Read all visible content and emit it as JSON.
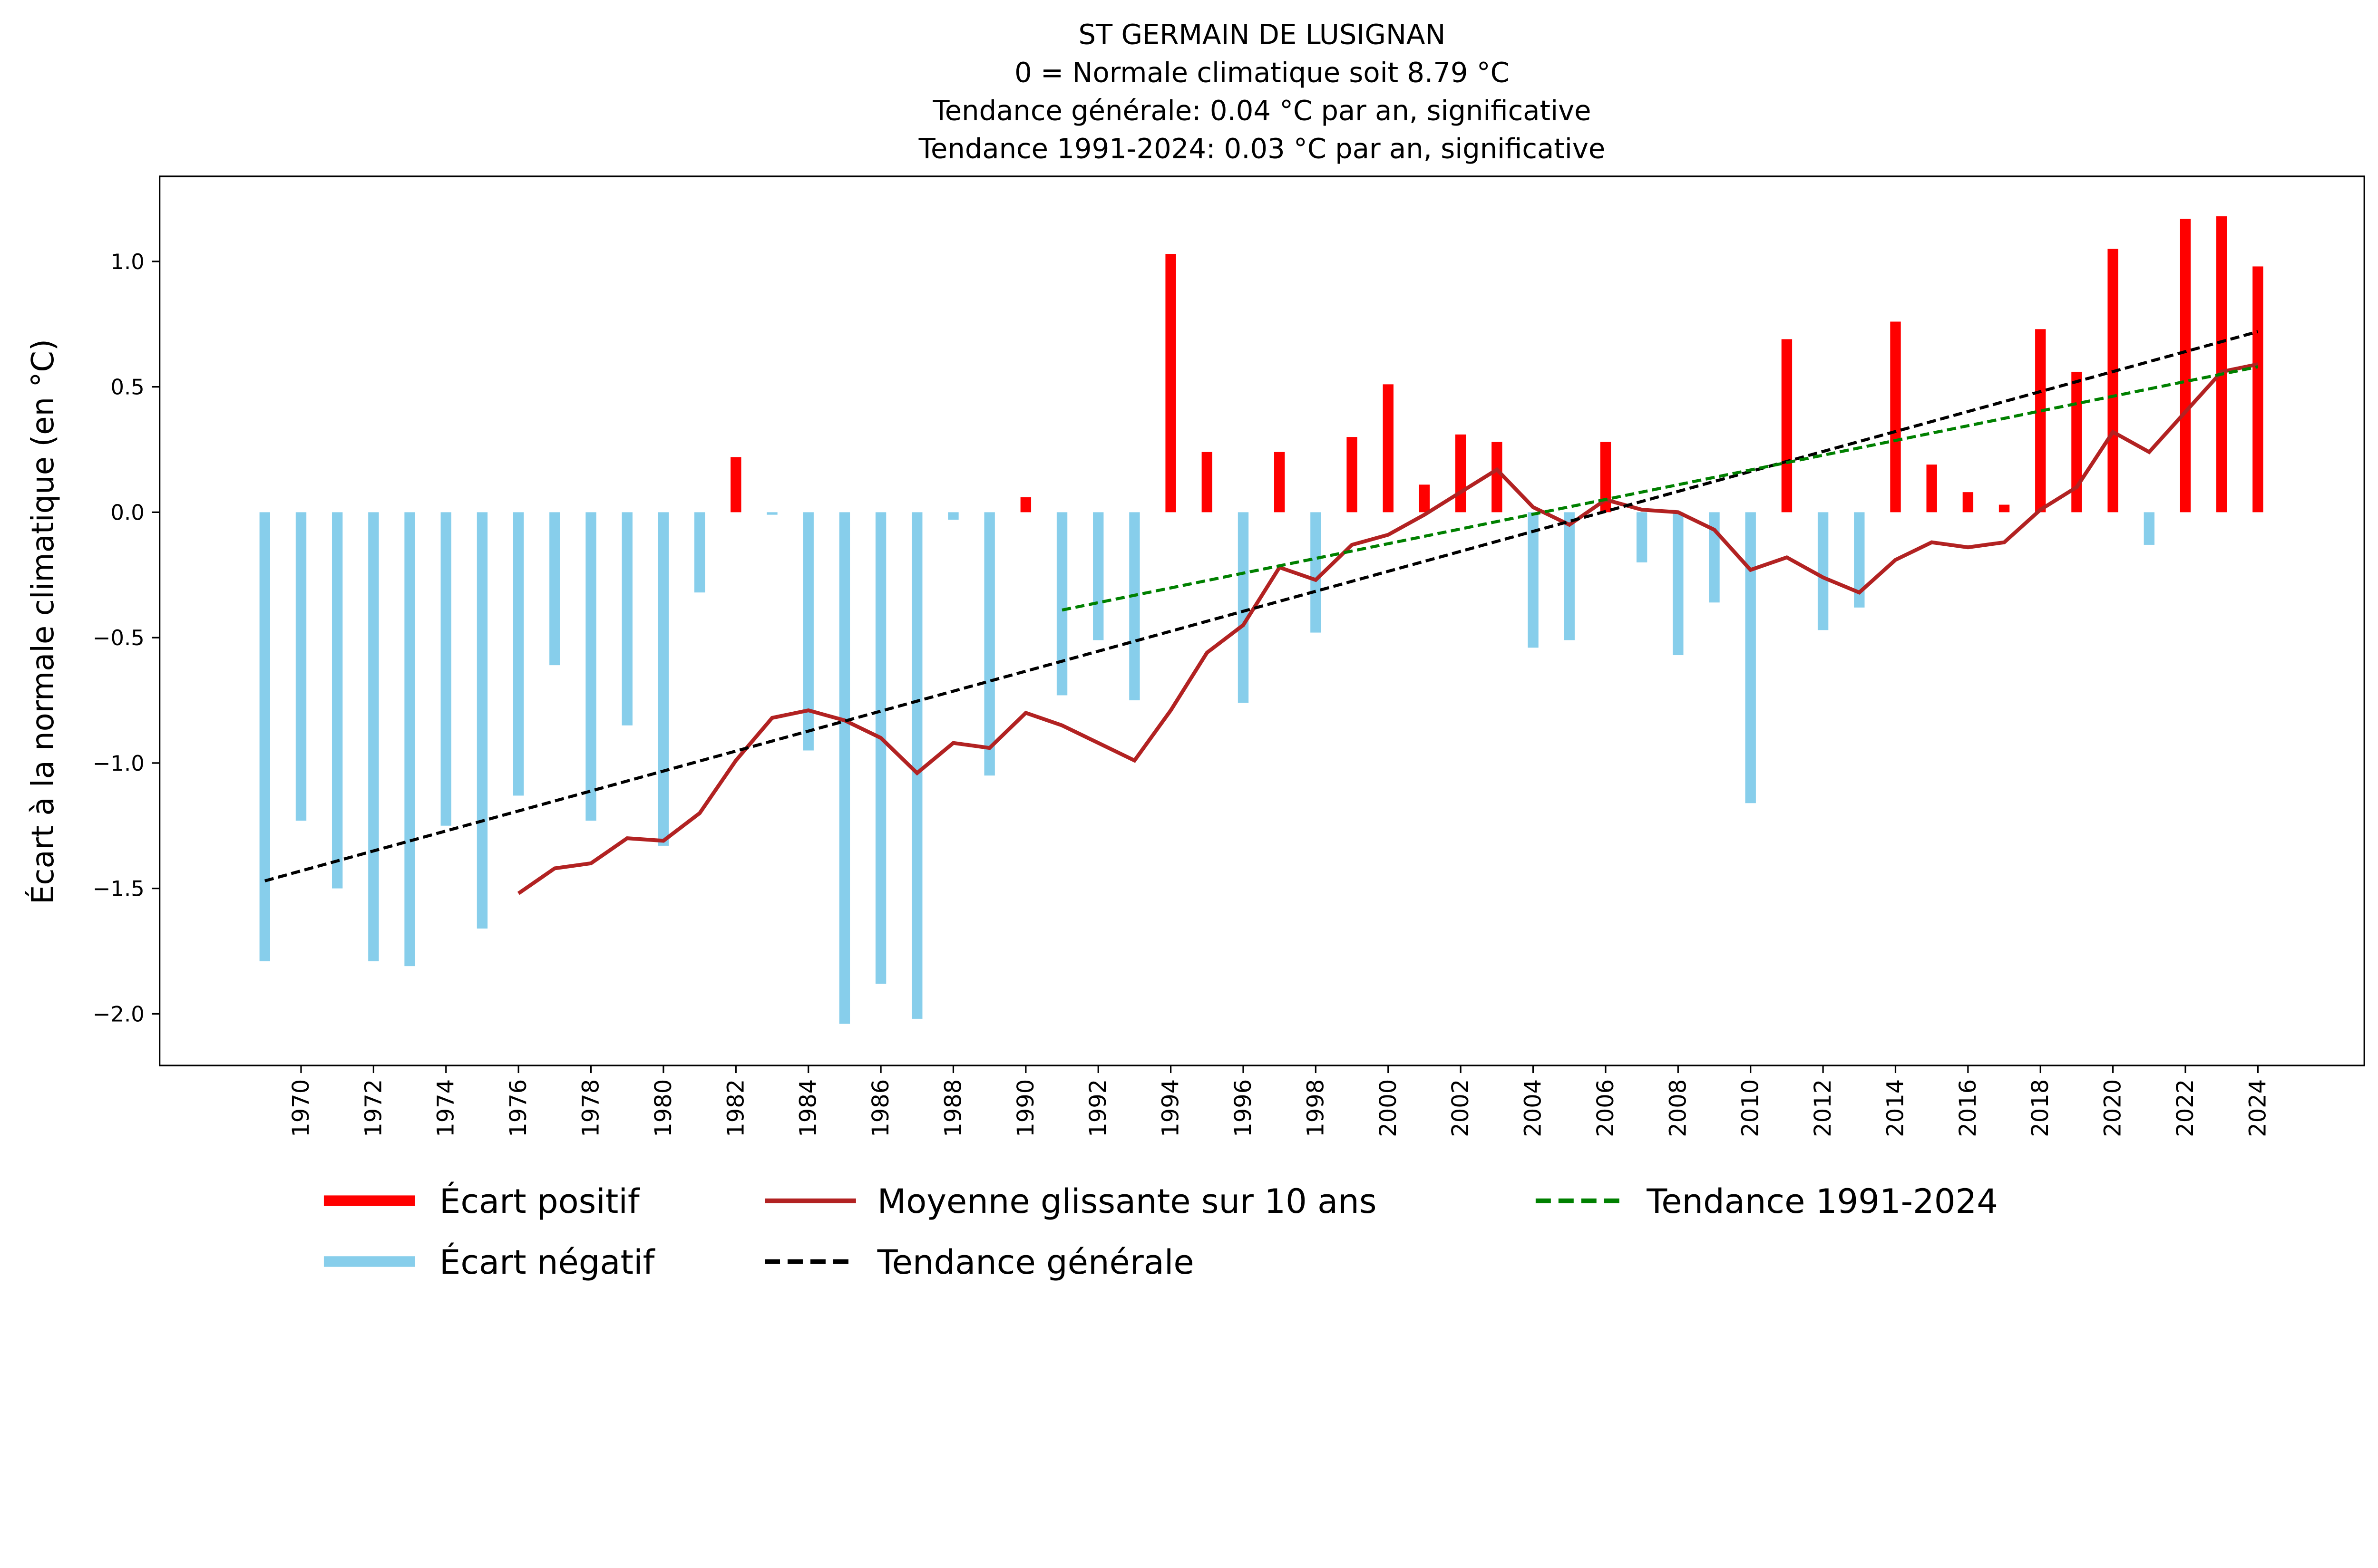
{
  "chart_data": {
    "type": "bar",
    "title_lines": [
      "ST GERMAIN DE LUSIGNAN",
      "0 = Normale climatique soit 8.79 °C",
      "Tendance générale: 0.04 °C par an, significative",
      "Tendance 1991-2024: 0.03 °C par an, significative"
    ],
    "xlabel": "",
    "ylabel": "Écart à la normale climatique (en °C)",
    "ylim": [
      -2.2,
      1.35
    ],
    "xlim": [
      1968,
      2025
    ],
    "yticks": [
      "−2.0",
      "−1.5",
      "−1.0",
      "−0.5",
      "0.0",
      "0.5",
      "1.0"
    ],
    "ytick_values": [
      -2.0,
      -1.5,
      -1.0,
      -0.5,
      0.0,
      0.5,
      1.0
    ],
    "xticks": [
      "1970",
      "1972",
      "1974",
      "1976",
      "1978",
      "1980",
      "1982",
      "1984",
      "1986",
      "1988",
      "1990",
      "1992",
      "1994",
      "1996",
      "1998",
      "2000",
      "2002",
      "2004",
      "2006",
      "2008",
      "2010",
      "2012",
      "2014",
      "2016",
      "2018",
      "2020",
      "2022",
      "2024"
    ],
    "grid": false,
    "colors": {
      "positive": "#ff0000",
      "negative": "#87ceeb",
      "moving_avg": "#b22222",
      "trend_general": "#000000",
      "trend_recent": "#008000"
    },
    "years": [
      1969,
      1970,
      1971,
      1972,
      1973,
      1974,
      1975,
      1976,
      1977,
      1978,
      1979,
      1980,
      1981,
      1982,
      1983,
      1984,
      1985,
      1986,
      1987,
      1988,
      1989,
      1990,
      1991,
      1992,
      1993,
      1994,
      1995,
      1996,
      1997,
      1998,
      1999,
      2000,
      2001,
      2002,
      2003,
      2004,
      2005,
      2006,
      2007,
      2008,
      2009,
      2010,
      2011,
      2012,
      2013,
      2014,
      2015,
      2016,
      2017,
      2018,
      2019,
      2020,
      2021,
      2022,
      2023,
      2024
    ],
    "anomalies": [
      -1.79,
      -1.23,
      -1.5,
      -1.79,
      -1.81,
      -1.25,
      -1.66,
      -1.13,
      -0.61,
      -1.23,
      -0.85,
      -1.33,
      -0.32,
      0.22,
      -0.01,
      -0.95,
      -2.04,
      -1.88,
      -2.02,
      -0.03,
      -1.05,
      0.06,
      -0.73,
      -0.51,
      -0.75,
      1.03,
      0.24,
      -0.76,
      0.24,
      -0.48,
      0.3,
      0.51,
      0.11,
      0.31,
      0.28,
      -0.54,
      -0.51,
      0.28,
      -0.2,
      -0.57,
      -0.36,
      -1.16,
      0.69,
      -0.47,
      -0.38,
      0.76,
      0.19,
      0.08,
      0.03,
      0.73,
      0.56,
      1.05,
      -0.13,
      1.17,
      1.18,
      0.98
    ],
    "moving_average": {
      "years": [
        1976,
        1977,
        1978,
        1979,
        1980,
        1981,
        1982,
        1983,
        1984,
        1985,
        1986,
        1987,
        1988,
        1989,
        1990,
        1991,
        1992,
        1993,
        1994,
        1995,
        1996,
        1997,
        1998,
        1999,
        2000,
        2001,
        2002,
        2003,
        2004,
        2005,
        2006,
        2007,
        2008,
        2009,
        2010,
        2011,
        2012,
        2013,
        2014,
        2015,
        2016,
        2017,
        2018,
        2019,
        2020,
        2021,
        2022,
        2023,
        2024
      ],
      "values": [
        -1.52,
        -1.42,
        -1.4,
        -1.3,
        -1.31,
        -1.2,
        -0.99,
        -0.82,
        -0.79,
        -0.83,
        -0.9,
        -1.04,
        -0.92,
        -0.94,
        -0.8,
        -0.85,
        -0.92,
        -0.99,
        -0.79,
        -0.56,
        -0.45,
        -0.22,
        -0.27,
        -0.13,
        -0.09,
        -0.01,
        0.08,
        0.17,
        0.02,
        -0.05,
        0.05,
        0.01,
        0.0,
        -0.07,
        -0.23,
        -0.18,
        -0.26,
        -0.32,
        -0.19,
        -0.12,
        -0.14,
        -0.12,
        0.01,
        0.1,
        0.32,
        0.24,
        0.4,
        0.56,
        0.59
      ]
    },
    "trend_general": {
      "x": [
        1969,
        2024
      ],
      "y": [
        -1.47,
        0.72
      ]
    },
    "trend_recent": {
      "x": [
        1991,
        2024
      ],
      "y": [
        -0.39,
        0.58
      ]
    },
    "legend": {
      "placement": "bottom",
      "items": [
        "Écart positif",
        "Écart négatif",
        "Moyenne glissante sur 10 ans",
        "Tendance générale",
        "Tendance 1991-2024"
      ]
    }
  }
}
